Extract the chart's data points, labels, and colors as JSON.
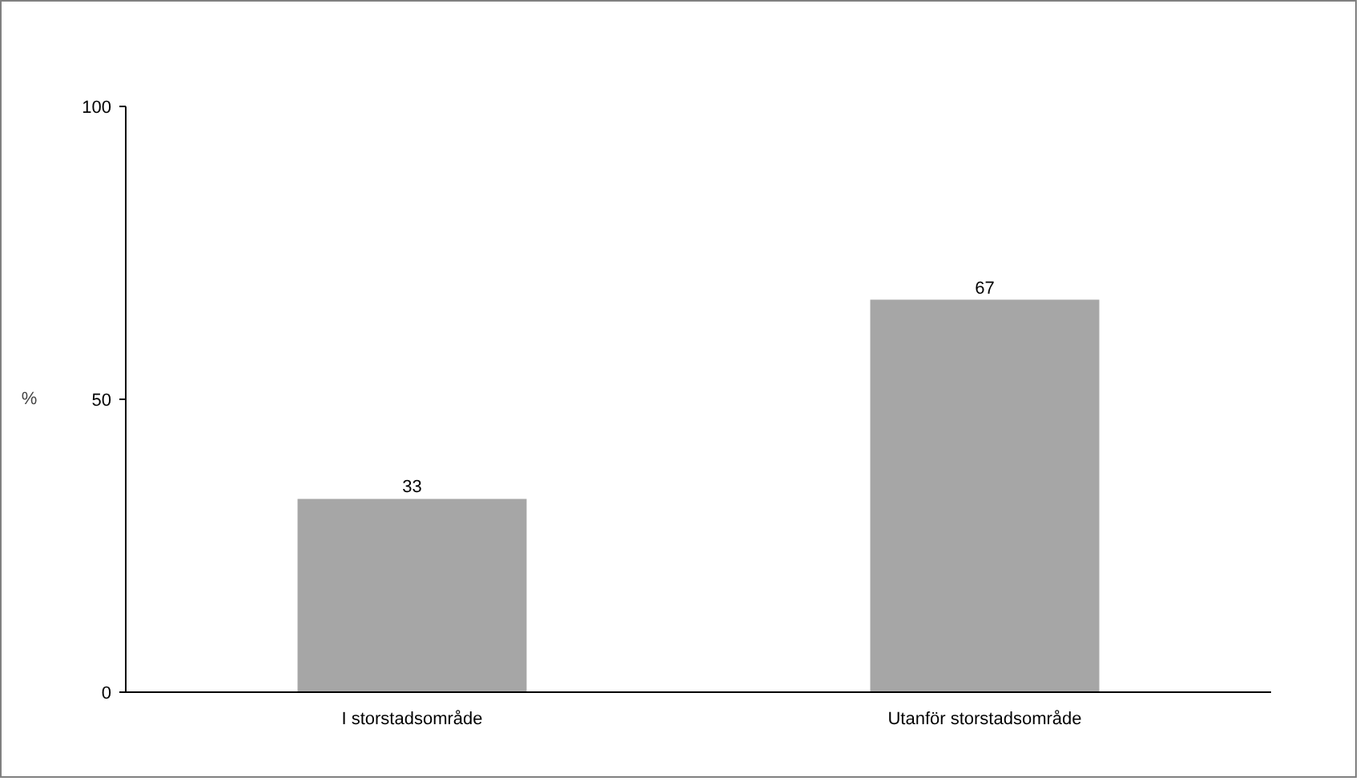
{
  "chart_data": {
    "type": "bar",
    "ylabel": "%",
    "categories": [
      "I storstadsområde",
      "Utanför storstadsområde"
    ],
    "values": [
      33,
      67
    ],
    "color": "#a6a6a6",
    "ylim": [
      0,
      100
    ],
    "yticks": [
      0,
      50,
      100
    ],
    "data_labels": true,
    "grid": false
  }
}
